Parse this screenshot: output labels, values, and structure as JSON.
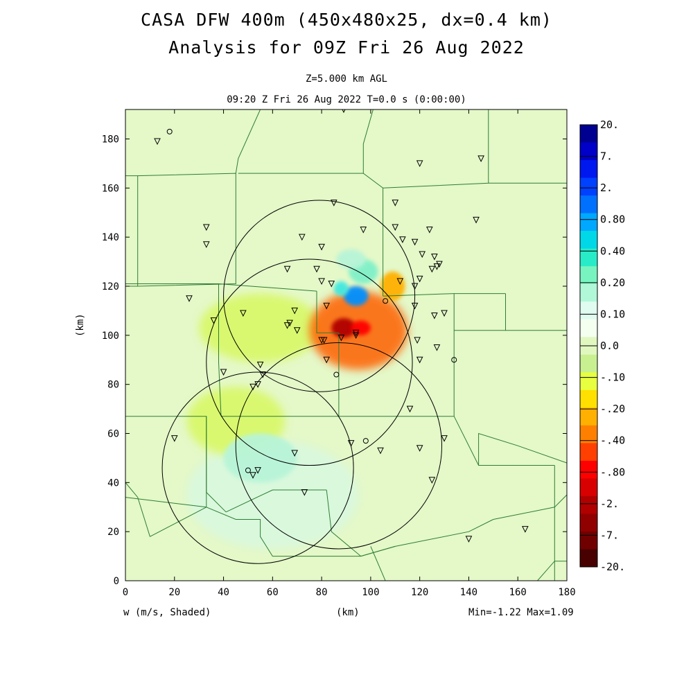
{
  "header": {
    "title_line1": "CASA DFW 400m (450x480x25, dx=0.4 km)",
    "title_line2": "Analysis for 09Z Fri 26 Aug 2022",
    "level": "Z=5.000 km AGL",
    "time": "09:20 Z Fri 26 Aug 2022    T=0.0 s (0:00:00)"
  },
  "footer": {
    "variable": "w (m/s, Shaded)",
    "xunit": "(km)",
    "minmax": "Min=-1.22 Max=1.09"
  },
  "colorbar": {
    "labels": [
      "20.",
      "7.",
      "2.",
      "0.80",
      "0.40",
      "0.20",
      "0.10",
      "0.0",
      "-.10",
      "-.20",
      "-.40",
      "-.80",
      "-2.",
      "-7.",
      "-20."
    ],
    "colors": [
      "#000090",
      "#0000c8",
      "#0018f0",
      "#0040ff",
      "#0070ff",
      "#00a8ff",
      "#00d8e8",
      "#28ecc8",
      "#78f4c0",
      "#b0f8d8",
      "#e0fcf0",
      "#f4fff0",
      "#e0f8c0",
      "#c8f090",
      "#e8ff40",
      "#ffe000",
      "#ffb000",
      "#ff8000",
      "#ff4000",
      "#ff0000",
      "#d80000",
      "#b00000",
      "#900000",
      "#700000",
      "#480000"
    ]
  },
  "chart_data": {
    "type": "heatmap",
    "title": "CASA DFW 400m (450x480x25, dx=0.4 km) Analysis for 09Z Fri 26 Aug 2022",
    "xlabel": "(km)",
    "ylabel": "(km)",
    "xlim": [
      0,
      180
    ],
    "ylim": [
      0,
      192
    ],
    "xticks": [
      0,
      20,
      40,
      60,
      80,
      100,
      120,
      140,
      160,
      180
    ],
    "yticks": [
      0,
      20,
      40,
      60,
      80,
      100,
      120,
      140,
      160,
      180
    ],
    "field": "w (m/s)",
    "min": -1.22,
    "max": 1.09,
    "features": [
      {
        "x": 95,
        "y": 102,
        "rx": 20,
        "ry": 16,
        "value": -0.6
      },
      {
        "x": 89,
        "y": 103,
        "rx": 5,
        "ry": 4,
        "value": -1.2
      },
      {
        "x": 96,
        "y": 103,
        "rx": 4,
        "ry": 3,
        "value": -1.0
      },
      {
        "x": 109,
        "y": 120,
        "rx": 5,
        "ry": 6,
        "value": -0.3
      },
      {
        "x": 94,
        "y": 116,
        "rx": 5,
        "ry": 4,
        "value": 0.8
      },
      {
        "x": 88,
        "y": 119,
        "rx": 3,
        "ry": 3,
        "value": 0.4
      },
      {
        "x": 97,
        "y": 126,
        "rx": 6,
        "ry": 5,
        "value": 0.2
      },
      {
        "x": 92,
        "y": 131,
        "rx": 6,
        "ry": 4,
        "value": 0.15
      },
      {
        "x": 55,
        "y": 103,
        "rx": 25,
        "ry": 14,
        "value": -0.12
      },
      {
        "x": 45,
        "y": 65,
        "rx": 20,
        "ry": 14,
        "value": -0.11
      },
      {
        "x": 60,
        "y": 35,
        "rx": 35,
        "ry": 22,
        "value": 0.12
      },
      {
        "x": 55,
        "y": 50,
        "rx": 15,
        "ry": 10,
        "value": 0.16
      }
    ],
    "radar_rings": [
      {
        "x": 79,
        "y": 116,
        "r": 39
      },
      {
        "x": 75,
        "y": 89,
        "r": 42
      },
      {
        "x": 54,
        "y": 46,
        "r": 39
      },
      {
        "x": 87,
        "y": 55,
        "r": 42
      }
    ],
    "stations_triangle": [
      [
        13,
        179
      ],
      [
        85,
        154
      ],
      [
        110,
        154
      ],
      [
        120,
        170
      ],
      [
        145,
        172
      ],
      [
        143,
        147
      ],
      [
        110,
        144
      ],
      [
        97,
        143
      ],
      [
        124,
        143
      ],
      [
        33,
        144
      ],
      [
        33,
        137
      ],
      [
        72,
        140
      ],
      [
        80,
        136
      ],
      [
        113,
        139
      ],
      [
        118,
        138
      ],
      [
        121,
        133
      ],
      [
        126,
        132
      ],
      [
        128,
        129
      ],
      [
        125,
        127
      ],
      [
        127,
        128
      ],
      [
        66,
        127
      ],
      [
        78,
        127
      ],
      [
        84,
        121
      ],
      [
        80,
        122
      ],
      [
        112,
        122
      ],
      [
        120,
        123
      ],
      [
        118,
        120
      ],
      [
        82,
        112
      ],
      [
        118,
        112
      ],
      [
        69,
        110
      ],
      [
        26,
        115
      ],
      [
        48,
        109
      ],
      [
        36,
        106
      ],
      [
        66,
        104
      ],
      [
        67,
        105
      ],
      [
        70,
        102
      ],
      [
        81,
        98
      ],
      [
        80,
        98
      ],
      [
        88,
        99
      ],
      [
        94,
        101
      ],
      [
        94,
        100
      ],
      [
        126,
        108
      ],
      [
        130,
        109
      ],
      [
        119,
        98
      ],
      [
        120,
        90
      ],
      [
        82,
        90
      ],
      [
        127,
        95
      ],
      [
        55,
        88
      ],
      [
        56,
        84
      ],
      [
        40,
        85
      ],
      [
        52,
        79
      ],
      [
        54,
        80
      ],
      [
        116,
        70
      ],
      [
        20,
        58
      ],
      [
        69,
        52
      ],
      [
        92,
        56
      ],
      [
        104,
        53
      ],
      [
        120,
        54
      ],
      [
        130,
        58
      ],
      [
        54,
        45
      ],
      [
        52,
        43
      ],
      [
        73,
        36
      ],
      [
        125,
        41
      ],
      [
        140,
        17
      ],
      [
        163,
        21
      ],
      [
        89,
        192
      ]
    ],
    "stations_circle": [
      [
        18,
        183
      ],
      [
        106,
        114
      ],
      [
        134,
        90
      ],
      [
        86,
        84
      ],
      [
        98,
        57
      ],
      [
        50,
        45
      ]
    ],
    "boundaries": [
      [
        [
          0,
          165
        ],
        [
          5,
          165
        ],
        [
          5,
          120
        ],
        [
          0,
          120
        ]
      ],
      [
        [
          5,
          165
        ],
        [
          45,
          166
        ],
        [
          45,
          121
        ],
        [
          5,
          120
        ]
      ],
      [
        [
          45,
          166
        ],
        [
          46,
          172
        ],
        [
          55,
          192
        ]
      ],
      [
        [
          46,
          166
        ],
        [
          97,
          166
        ],
        [
          97,
          178
        ],
        [
          101,
          192
        ]
      ],
      [
        [
          97,
          166
        ],
        [
          105,
          160
        ],
        [
          148,
          162
        ],
        [
          148,
          192
        ]
      ],
      [
        [
          105,
          160
        ],
        [
          105,
          154
        ],
        [
          105,
          116
        ]
      ],
      [
        [
          148,
          162
        ],
        [
          160,
          162
        ],
        [
          180,
          162
        ]
      ],
      [
        [
          0,
          121
        ],
        [
          38,
          121
        ],
        [
          78,
          118
        ]
      ],
      [
        [
          38,
          121
        ],
        [
          38,
          89
        ],
        [
          39,
          67
        ]
      ],
      [
        [
          78,
          118
        ],
        [
          78,
          101
        ],
        [
          87,
          101
        ],
        [
          87,
          67
        ]
      ],
      [
        [
          105,
          116
        ],
        [
          134,
          117
        ],
        [
          155,
          117
        ]
      ],
      [
        [
          134,
          117
        ],
        [
          134,
          67
        ]
      ],
      [
        [
          155,
          117
        ],
        [
          155,
          102
        ],
        [
          180,
          102
        ]
      ],
      [
        [
          134,
          102
        ],
        [
          155,
          102
        ]
      ],
      [
        [
          39,
          67
        ],
        [
          87,
          67
        ],
        [
          134,
          67
        ]
      ],
      [
        [
          0,
          67
        ],
        [
          33,
          67
        ],
        [
          33,
          30
        ],
        [
          10,
          18
        ]
      ],
      [
        [
          33,
          67
        ],
        [
          33,
          36
        ],
        [
          41,
          28
        ]
      ],
      [
        [
          0,
          40
        ],
        [
          5,
          34
        ],
        [
          10,
          18
        ]
      ],
      [
        [
          0,
          34
        ],
        [
          33,
          30
        ]
      ],
      [
        [
          33,
          30
        ],
        [
          45,
          25
        ],
        [
          55,
          25
        ],
        [
          55,
          18
        ],
        [
          60,
          10
        ],
        [
          78,
          10
        ],
        [
          96,
          10
        ]
      ],
      [
        [
          41,
          28
        ],
        [
          60,
          37
        ],
        [
          82,
          37
        ]
      ],
      [
        [
          82,
          37
        ],
        [
          84,
          20
        ],
        [
          96,
          10
        ],
        [
          110,
          14
        ]
      ],
      [
        [
          96,
          10
        ],
        [
          110,
          14
        ],
        [
          140,
          20
        ],
        [
          150,
          25
        ]
      ],
      [
        [
          106,
          0
        ],
        [
          100,
          14
        ]
      ],
      [
        [
          134,
          67
        ],
        [
          144,
          47
        ],
        [
          175,
          47
        ]
      ],
      [
        [
          144,
          47
        ],
        [
          144,
          60
        ],
        [
          160,
          55
        ],
        [
          180,
          48
        ]
      ],
      [
        [
          175,
          47
        ],
        [
          175,
          0
        ]
      ],
      [
        [
          150,
          25
        ],
        [
          175,
          30
        ],
        [
          180,
          35
        ]
      ],
      [
        [
          168,
          0
        ],
        [
          175,
          8
        ],
        [
          180,
          8
        ]
      ]
    ]
  }
}
